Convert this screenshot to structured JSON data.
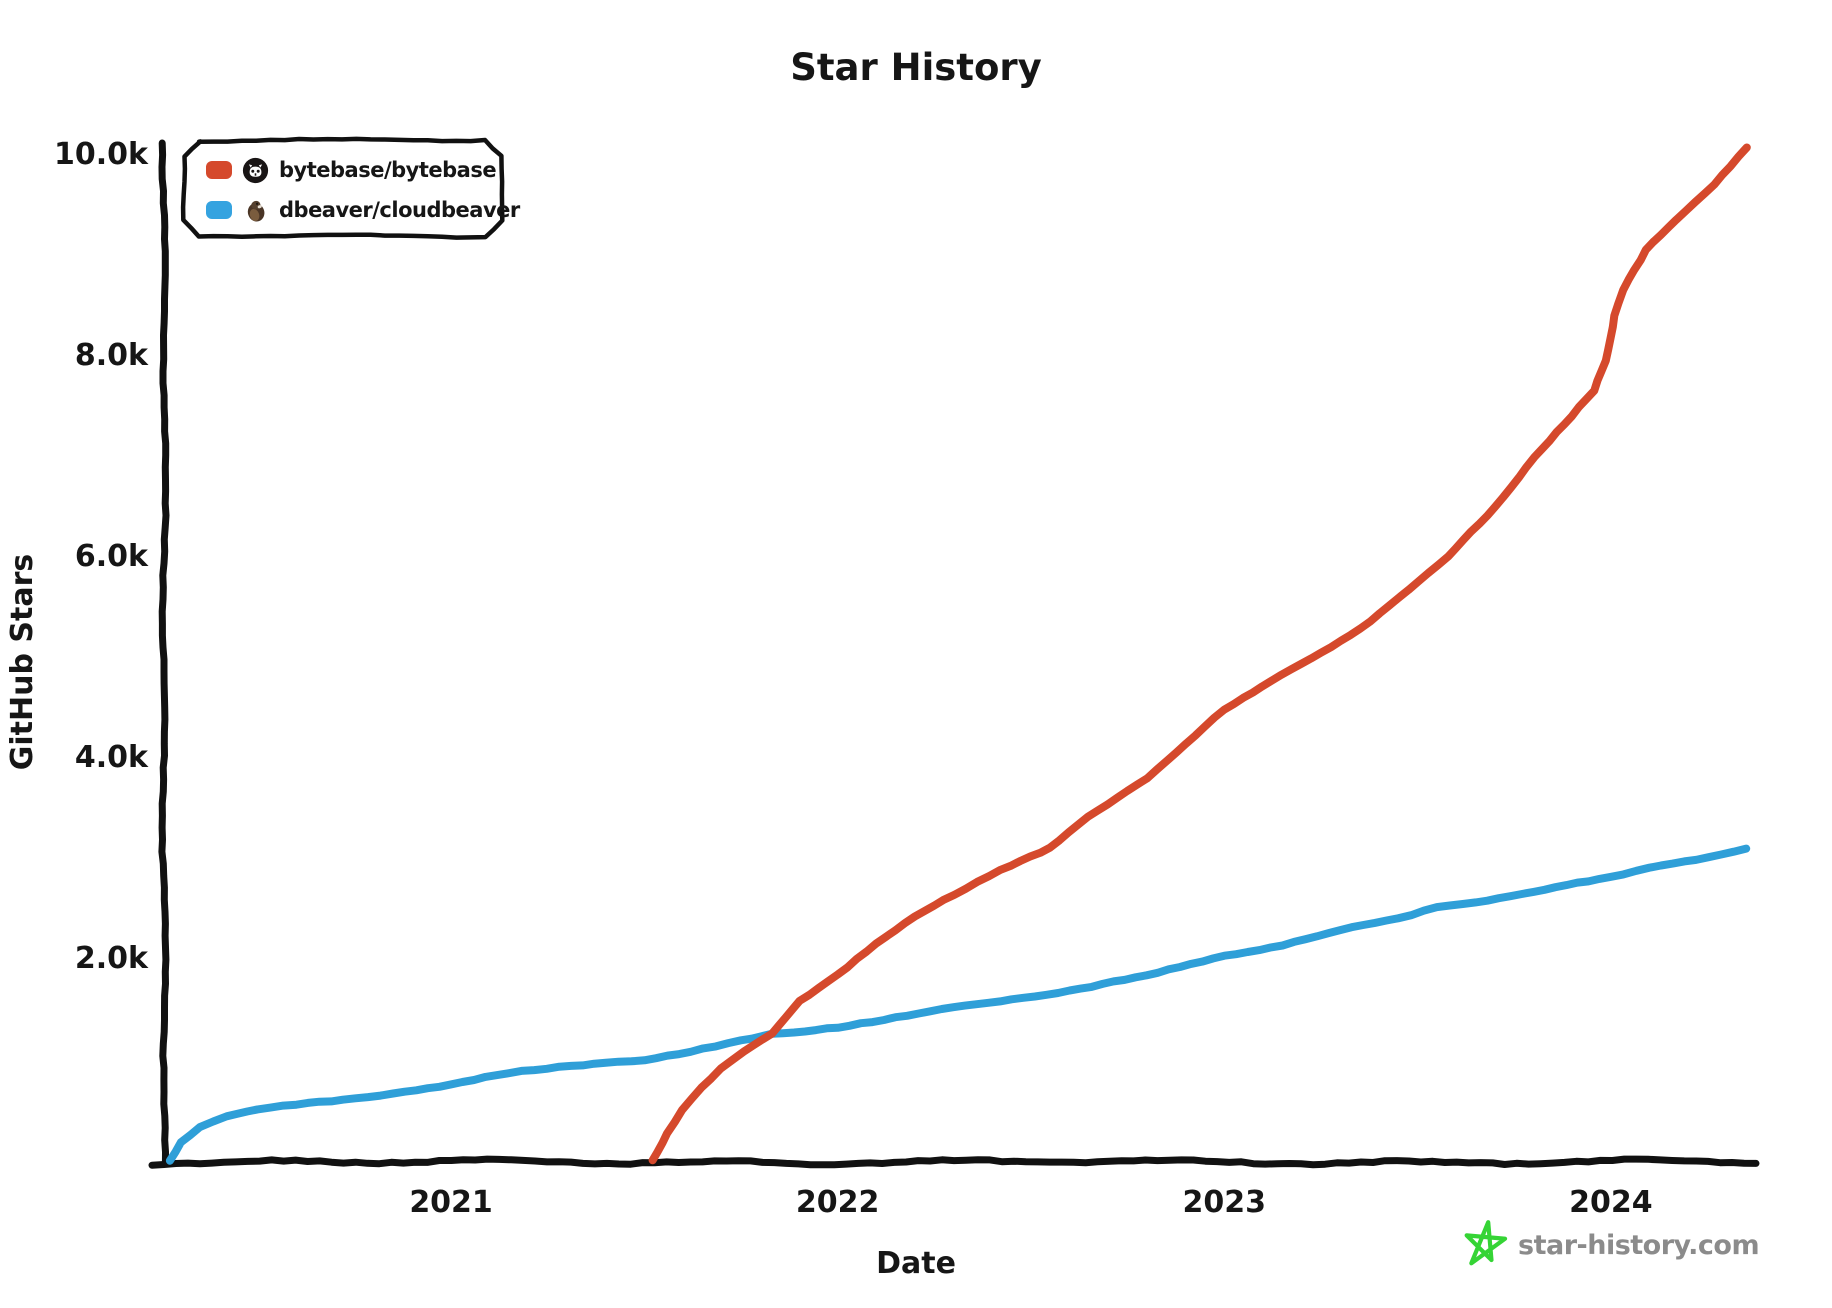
{
  "title": "Star History",
  "watermark": {
    "text": "star-history.com",
    "star_color": "#35d435",
    "text_color": "#8b8b8b"
  },
  "legend": [
    {
      "label": "bytebase/bytebase",
      "color": "#d5492c",
      "avatar_icon": "github-octocat-avatar"
    },
    {
      "label": "dbeaver/cloudbeaver",
      "color": "#35a3e0",
      "avatar_icon": "beaver-avatar"
    }
  ],
  "chart_data": {
    "type": "line",
    "title": "Star History",
    "xlabel": "Date",
    "ylabel": "GitHub Stars",
    "xlim": [
      2020.26,
      2024.36
    ],
    "ylim": [
      0,
      10100
    ],
    "grid": false,
    "legend_position": "top-left",
    "x_ticks": [
      {
        "value": 2021,
        "label": "2021"
      },
      {
        "value": 2022,
        "label": "2022"
      },
      {
        "value": 2023,
        "label": "2023"
      },
      {
        "value": 2024,
        "label": "2024"
      }
    ],
    "y_ticks": [
      {
        "value": 2000,
        "label": "2.0k"
      },
      {
        "value": 4000,
        "label": "4.0k"
      },
      {
        "value": 6000,
        "label": "6.0k"
      },
      {
        "value": 8000,
        "label": "8.0k"
      },
      {
        "value": 10000,
        "label": "10.0k"
      }
    ],
    "series": [
      {
        "name": "dbeaver/cloudbeaver",
        "color": "#2f9fd8",
        "points": [
          [
            2020.27,
            0
          ],
          [
            2020.3,
            180
          ],
          [
            2020.35,
            330
          ],
          [
            2020.42,
            430
          ],
          [
            2020.5,
            490
          ],
          [
            2020.6,
            545
          ],
          [
            2020.72,
            600
          ],
          [
            2020.85,
            665
          ],
          [
            2021.0,
            740
          ],
          [
            2021.15,
            855
          ],
          [
            2021.28,
            930
          ],
          [
            2021.4,
            980
          ],
          [
            2021.5,
            1000
          ],
          [
            2021.62,
            1075
          ],
          [
            2021.75,
            1185
          ],
          [
            2021.83,
            1260
          ],
          [
            2022.0,
            1330
          ],
          [
            2022.15,
            1410
          ],
          [
            2022.3,
            1505
          ],
          [
            2022.45,
            1600
          ],
          [
            2022.6,
            1685
          ],
          [
            2022.8,
            1825
          ],
          [
            2023.0,
            2040
          ],
          [
            2023.15,
            2150
          ],
          [
            2023.3,
            2285
          ],
          [
            2023.45,
            2400
          ],
          [
            2023.55,
            2520
          ],
          [
            2023.65,
            2575
          ],
          [
            2023.8,
            2665
          ],
          [
            2024.0,
            2800
          ],
          [
            2024.1,
            2905
          ],
          [
            2024.22,
            2995
          ],
          [
            2024.35,
            3100
          ]
        ]
      },
      {
        "name": "bytebase/bytebase",
        "color": "#d5492c",
        "points": [
          [
            2021.52,
            0
          ],
          [
            2021.56,
            260
          ],
          [
            2021.6,
            490
          ],
          [
            2021.65,
            710
          ],
          [
            2021.7,
            900
          ],
          [
            2021.76,
            1070
          ],
          [
            2021.83,
            1260
          ],
          [
            2021.9,
            1590
          ],
          [
            2022.0,
            1850
          ],
          [
            2022.1,
            2150
          ],
          [
            2022.2,
            2420
          ],
          [
            2022.3,
            2650
          ],
          [
            2022.42,
            2900
          ],
          [
            2022.55,
            3100
          ],
          [
            2022.65,
            3400
          ],
          [
            2022.8,
            3800
          ],
          [
            2022.9,
            4150
          ],
          [
            2023.0,
            4480
          ],
          [
            2023.1,
            4700
          ],
          [
            2023.25,
            5050
          ],
          [
            2023.35,
            5300
          ],
          [
            2023.45,
            5600
          ],
          [
            2023.58,
            6000
          ],
          [
            2023.7,
            6500
          ],
          [
            2023.8,
            7000
          ],
          [
            2023.9,
            7400
          ],
          [
            2023.96,
            7650
          ],
          [
            2023.99,
            7950
          ],
          [
            2024.01,
            8400
          ],
          [
            2024.03,
            8660
          ],
          [
            2024.09,
            9060
          ],
          [
            2024.17,
            9350
          ],
          [
            2024.27,
            9700
          ],
          [
            2024.35,
            10080
          ]
        ]
      }
    ]
  }
}
